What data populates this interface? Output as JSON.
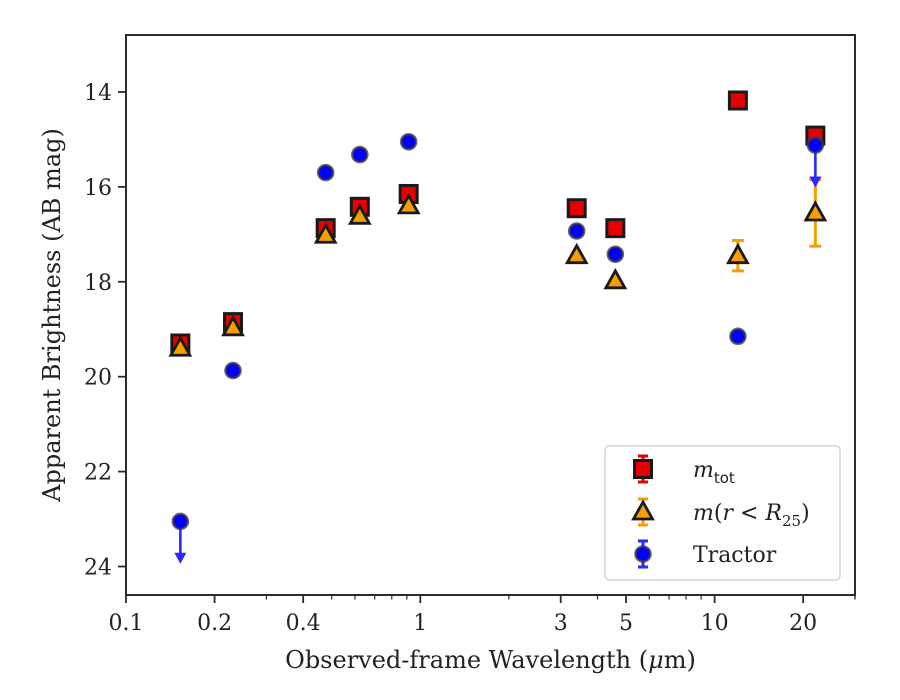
{
  "chart_data": {
    "type": "scatter",
    "xlabel_pre": "Observed-frame Wavelength (",
    "xlabel_mu": "μ",
    "xlabel_post": "m)",
    "ylabel": "Apparent Brightness (AB mag)",
    "xscale": "log",
    "xlim": [
      0.1,
      30
    ],
    "ylim": [
      24.6,
      12.8
    ],
    "y_inverted": true,
    "grid": false,
    "legend_position": "lower-right",
    "x_tick_labels": [
      "0.1",
      "0.2",
      "0.4",
      "1",
      "3",
      "5",
      "10",
      "20"
    ],
    "x_tick_values": [
      0.1,
      0.2,
      0.4,
      1,
      3,
      5,
      10,
      20
    ],
    "y_tick_labels": [
      "14",
      "16",
      "18",
      "20",
      "22",
      "24"
    ],
    "y_tick_values": [
      14,
      16,
      18,
      20,
      22,
      24
    ],
    "series": [
      {
        "name": "m_tot",
        "legend_label_italic": "m",
        "legend_label_sub": "tot",
        "marker": "square",
        "color": "#e60000",
        "edge": "#1a1a1a",
        "errcolor": "#e60000",
        "points": [
          {
            "x": 0.153,
            "y": 19.3
          },
          {
            "x": 0.231,
            "y": 18.85
          },
          {
            "x": 0.477,
            "y": 16.87
          },
          {
            "x": 0.623,
            "y": 16.42
          },
          {
            "x": 0.913,
            "y": 16.15
          },
          {
            "x": 3.4,
            "y": 16.45
          },
          {
            "x": 4.6,
            "y": 16.87
          },
          {
            "x": 12.0,
            "y": 14.18
          },
          {
            "x": 22.0,
            "y": 14.92
          }
        ]
      },
      {
        "name": "m(r<R_25)",
        "legend_label_parts": [
          "m",
          "(",
          "r",
          " < ",
          "R",
          "25",
          ")"
        ],
        "marker": "triangle",
        "color": "#f5a000",
        "edge": "#1a1a1a",
        "errcolor": "#f5a000",
        "points": [
          {
            "x": 0.153,
            "y": 19.4,
            "err": 0
          },
          {
            "x": 0.231,
            "y": 18.97,
            "err": 0
          },
          {
            "x": 0.477,
            "y": 17.02,
            "err": 0
          },
          {
            "x": 0.623,
            "y": 16.62,
            "err": 0
          },
          {
            "x": 0.913,
            "y": 16.4,
            "err": 0
          },
          {
            "x": 3.4,
            "y": 17.45,
            "err": 0
          },
          {
            "x": 4.6,
            "y": 17.98,
            "err": 0
          },
          {
            "x": 12.0,
            "y": 17.45,
            "err": 0.32
          },
          {
            "x": 22.0,
            "y": 16.55,
            "err": 0.7
          }
        ]
      },
      {
        "name": "Tractor",
        "marker": "circle",
        "color": "#0000ff",
        "edge": "#3a3a3a",
        "errcolor": "#2a2aff",
        "points": [
          {
            "x": 0.153,
            "y": 23.05,
            "upper_limit": true
          },
          {
            "x": 0.231,
            "y": 19.87
          },
          {
            "x": 0.477,
            "y": 15.7
          },
          {
            "x": 0.623,
            "y": 15.32
          },
          {
            "x": 0.913,
            "y": 15.05
          },
          {
            "x": 3.4,
            "y": 16.93
          },
          {
            "x": 4.6,
            "y": 17.42
          },
          {
            "x": 12.0,
            "y": 19.15
          },
          {
            "x": 22.0,
            "y": 15.12,
            "upper_limit": true
          }
        ]
      }
    ]
  }
}
